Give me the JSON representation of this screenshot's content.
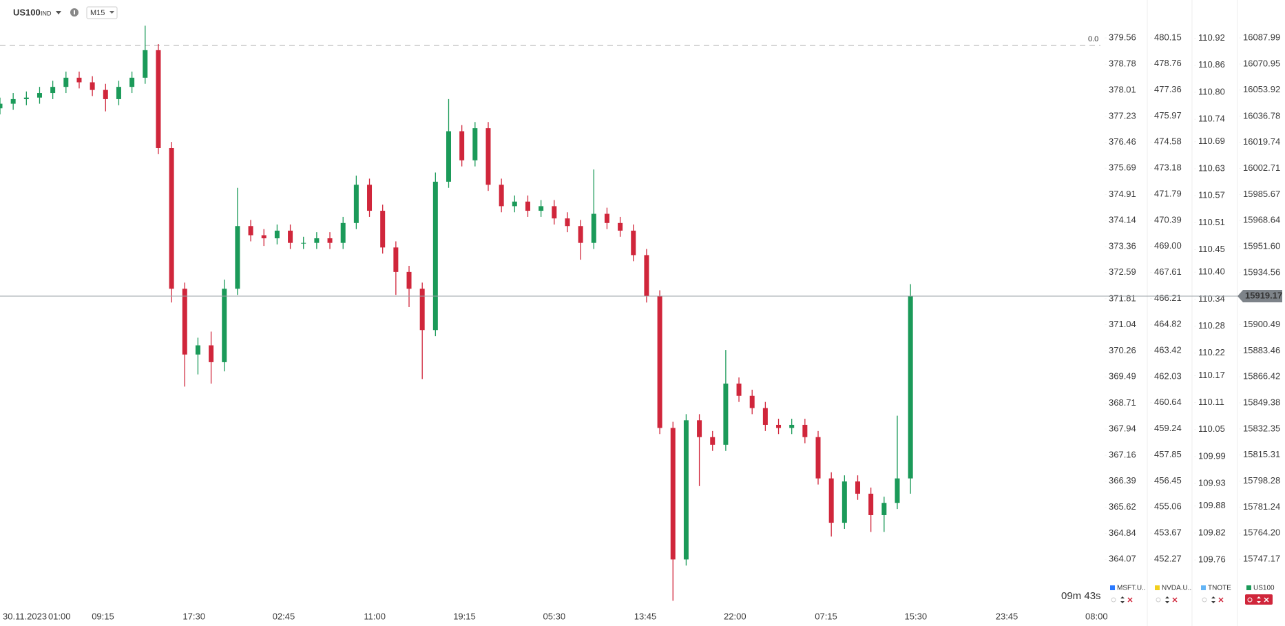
{
  "header": {
    "symbol": "US100",
    "exchange": "IND",
    "timeframe": "M15"
  },
  "chart_data": {
    "type": "candlestick",
    "name": "US100",
    "color": "#1b9a59",
    "up_color": "#1b9a59",
    "down_color": "#d0263b",
    "open": [
      16042,
      16045,
      16048,
      16049,
      16052,
      16056,
      16062,
      16059,
      16054,
      16048,
      16056,
      16062,
      16080,
      16016,
      15924,
      15881,
      15887,
      15876,
      15924,
      15965,
      15959,
      15957,
      15962,
      15954,
      15954,
      15957,
      15954,
      15967,
      15992,
      15975,
      15951,
      15935,
      15924,
      15897,
      15994,
      16027,
      16008,
      16029,
      15992,
      15978,
      15981,
      15975,
      15978,
      15970,
      15965,
      15954,
      15973,
      15967,
      15962,
      15946,
      15919,
      15833,
      15747,
      15838,
      15827,
      15822,
      15862,
      15854,
      15846,
      15835,
      15833,
      15835,
      15827,
      15800,
      15771,
      15798,
      15790,
      15776,
      15784,
      15800
    ],
    "high": [
      16049,
      16052,
      16053,
      16056,
      16060,
      16066,
      16066,
      16063,
      16058,
      16060,
      16066,
      16096,
      16084,
      16020,
      15928,
      15892,
      15896,
      15930,
      15990,
      15969,
      15963,
      15966,
      15966,
      15958,
      15961,
      15961,
      15971,
      15998,
      15996,
      15979,
      15955,
      15939,
      15928,
      16000,
      16048,
      16031,
      16033,
      16033,
      15996,
      15985,
      15985,
      15982,
      15982,
      15974,
      15969,
      16002,
      15977,
      15971,
      15966,
      15950,
      15923,
      15837,
      15842,
      15842,
      15831,
      15884,
      15866,
      15858,
      15850,
      15839,
      15839,
      15839,
      15831,
      15804,
      15802,
      15802,
      15794,
      15788,
      15841,
      15927
    ],
    "low": [
      16038,
      16041,
      16044,
      16045,
      16048,
      16052,
      16055,
      16050,
      16040,
      16044,
      16052,
      16058,
      16012,
      15915,
      15860,
      15868,
      15862,
      15870,
      15920,
      15955,
      15952,
      15953,
      15950,
      15950,
      15950,
      15950,
      15950,
      15963,
      15971,
      15947,
      15920,
      15912,
      15865,
      15893,
      15990,
      16004,
      16004,
      15988,
      15974,
      15974,
      15971,
      15971,
      15966,
      15961,
      15943,
      15950,
      15963,
      15958,
      15942,
      15915,
      15829,
      15720,
      15743,
      15795,
      15818,
      15818,
      15850,
      15842,
      15831,
      15829,
      15829,
      15823,
      15796,
      15762,
      15767,
      15786,
      15765,
      15765,
      15780,
      15790
    ],
    "close": [
      16045,
      16048,
      16049,
      16052,
      16056,
      16062,
      16059,
      16054,
      16048,
      16056,
      16062,
      16080,
      16016,
      15924,
      15881,
      15887,
      15876,
      15924,
      15965,
      15959,
      15957,
      15962,
      15954,
      15954,
      15957,
      15954,
      15967,
      15992,
      15975,
      15951,
      15935,
      15924,
      15897,
      15994,
      16027,
      16008,
      16029,
      15992,
      15978,
      15981,
      15975,
      15978,
      15970,
      15965,
      15954,
      15973,
      15967,
      15962,
      15946,
      15919,
      15833,
      15747,
      15838,
      15827,
      15822,
      15862,
      15854,
      15846,
      15835,
      15833,
      15835,
      15827,
      15800,
      15771,
      15798,
      15790,
      15776,
      15784,
      15800,
      15919.17
    ],
    "xlim": [
      0,
      83.5
    ],
    "x_start_label": "30.11.2023",
    "xticks": [
      {
        "value": 4.5,
        "label": "01:00"
      },
      {
        "value": 7.8,
        "label": "09:15"
      },
      {
        "value": 14.7,
        "label": "17:30"
      },
      {
        "value": 21.5,
        "label": "02:45"
      },
      {
        "value": 28.4,
        "label": "11:00"
      },
      {
        "value": 35.2,
        "label": "19:15"
      },
      {
        "value": 42.0,
        "label": "05:30"
      },
      {
        "value": 48.9,
        "label": "13:45"
      },
      {
        "value": 55.7,
        "label": "22:00"
      },
      {
        "value": 62.6,
        "label": "07:15"
      },
      {
        "value": 69.4,
        "label": "15:30"
      },
      {
        "value": 76.3,
        "label": "23:45"
      },
      {
        "value": 83.1,
        "label": "08:00"
      }
    ],
    "ylim": [
      15714.3,
      16096.6
    ],
    "yticks": [
      16087.99,
      16070.95,
      16053.92,
      16036.78,
      16019.74,
      16002.71,
      15985.67,
      15968.64,
      {
        "value": 15951.6,
        "label": "15951.60"
      },
      15934.56,
      15900.49,
      15883.46,
      15866.42,
      15849.38,
      15832.35,
      15815.31,
      15798.28,
      15781.24,
      {
        "value": 15764.2,
        "label": "15764.20"
      },
      15747.17
    ],
    "other_scales": [
      {
        "name": "MSFT.U..",
        "color": "#2979ff",
        "ylim": [
          362.58,
          379.95
        ],
        "yticks": [
          379.56,
          378.78,
          378.01,
          377.23,
          376.46,
          375.69,
          374.91,
          374.14,
          373.36,
          372.59,
          371.81,
          371.04,
          370.26,
          369.49,
          368.71,
          367.94,
          367.16,
          366.39,
          365.62,
          364.84,
          364.07
        ]
      },
      {
        "name": "NVDA.U..",
        "color": "#f2cf1d",
        "ylim": [
          449.58,
          480.85
        ],
        "yticks": [
          480.15,
          478.76,
          477.36,
          475.97,
          474.58,
          473.18,
          471.79,
          470.39,
          {
            "value": 469,
            "label": "469.00"
          },
          467.61,
          466.21,
          464.82,
          463.42,
          462.03,
          460.64,
          459.24,
          457.85,
          456.45,
          455.06,
          453.67,
          452.27
        ]
      },
      {
        "name": "TNOTE",
        "color": "#64b5f6",
        "ylim": [
          109.65,
          110.95
        ],
        "yticks": [
          110.92,
          110.86,
          {
            "value": 110.8,
            "label": "110.80"
          },
          110.74,
          110.69,
          110.63,
          110.57,
          110.51,
          110.45,
          {
            "value": 110.4,
            "label": "110.40"
          },
          110.34,
          110.28,
          110.22,
          110.17,
          110.11,
          110.05,
          109.99,
          109.93,
          109.88,
          109.82,
          109.76
        ]
      }
    ],
    "reference_label": "0.0",
    "countdown": "09m 43s"
  }
}
